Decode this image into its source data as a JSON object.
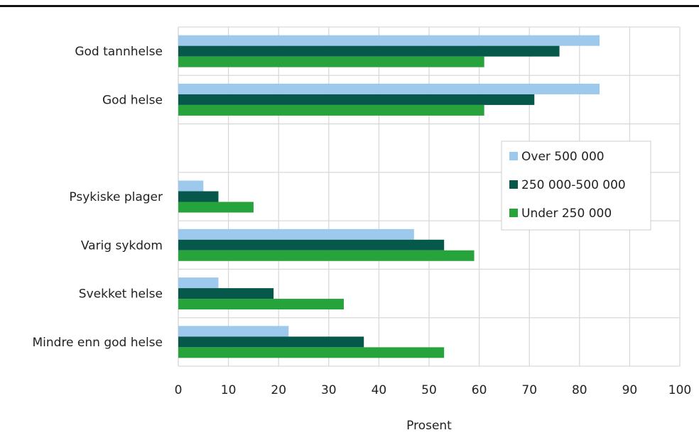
{
  "chart_data": {
    "type": "bar",
    "orientation": "horizontal",
    "categories": [
      "God tannhelse",
      "God helse",
      "",
      "Psykiske plager",
      "Varig sykdom",
      "Svekket helse",
      "Mindre enn god helse"
    ],
    "series": [
      {
        "name": "Over 500 000",
        "color": "#9dc9ec",
        "values": [
          84,
          84,
          null,
          5,
          47,
          8,
          22
        ]
      },
      {
        "name": "250 000-500 000",
        "color": "#06584a",
        "values": [
          76,
          71,
          null,
          8,
          53,
          19,
          37
        ]
      },
      {
        "name": "Under 250 000",
        "color": "#27a33b",
        "values": [
          61,
          61,
          null,
          15,
          59,
          33,
          53
        ]
      }
    ],
    "xlabel": "Prosent",
    "xlim": [
      0,
      100
    ],
    "xticks": [
      0,
      10,
      20,
      30,
      40,
      50,
      60,
      70,
      80,
      90,
      100
    ],
    "grid": true,
    "legend_position": "right-middle"
  }
}
